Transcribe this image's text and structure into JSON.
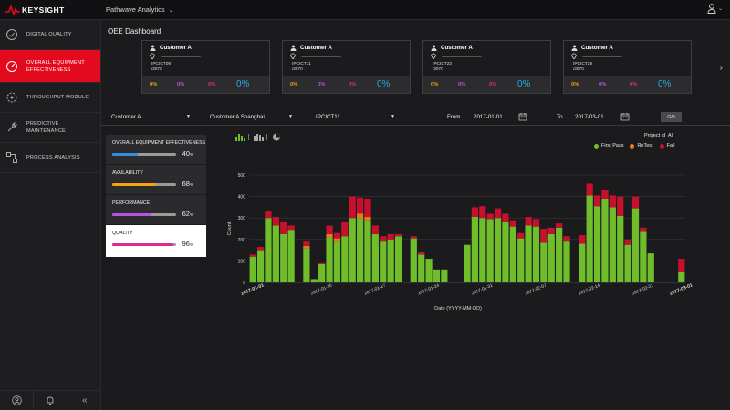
{
  "header": {
    "brand": "KEYSIGHT",
    "product": "Pathwave Analytics"
  },
  "sidebar": {
    "items": [
      {
        "label": "DIGITAL QUALITY",
        "icon": "quality-icon",
        "active": false
      },
      {
        "label": "OVERALL EQUIPMENT EFFECTIVENESS",
        "icon": "gauge-icon",
        "active": true
      },
      {
        "label": "THROUGHPUT MODULE",
        "icon": "throughput-icon",
        "active": false
      },
      {
        "label": "PREDICTIVE MAINTENANCE",
        "icon": "wrench-icon",
        "active": false
      },
      {
        "label": "PROCESS ANALYSIS",
        "icon": "process-icon",
        "active": false
      }
    ]
  },
  "page": {
    "title": "OEE Dashboard"
  },
  "cards": [
    {
      "customer": "Customer A",
      "tester": "IPCICT09",
      "model": "i3070",
      "p1": "0%",
      "p2": "0%",
      "p3": "0%",
      "p4": "0%"
    },
    {
      "customer": "Customer A",
      "tester": "IPCICT11",
      "model": "i3070",
      "p1": "0%",
      "p2": "0%",
      "p3": "0%",
      "p4": "0%"
    },
    {
      "customer": "Customer A",
      "tester": "IPCICT22",
      "model": "i3070",
      "p1": "0%",
      "p2": "0%",
      "p3": "0%",
      "p4": "0%"
    },
    {
      "customer": "Customer A",
      "tester": "IPCICT29",
      "model": "i3070",
      "p1": "0%",
      "p2": "0%",
      "p3": "0%",
      "p4": "0%"
    }
  ],
  "filters": {
    "customer": "Customer A",
    "site": "Customer A Shanghai",
    "tester": "IPCICT11",
    "from_label": "From",
    "from_date": "2017-01-01",
    "to_label": "To",
    "to_date": "2017-03-01",
    "go_label": "GO"
  },
  "kpis": [
    {
      "label": "OVERALL EQUIPMENT EFFECTIVENESS",
      "value": "40",
      "fill": 0.4,
      "color": "#2f8fe0",
      "selected": false
    },
    {
      "label": "AVAILABILITY",
      "value": "68",
      "fill": 0.68,
      "color": "#f5a016",
      "selected": false
    },
    {
      "label": "PERFORMANCE",
      "value": "62",
      "fill": 0.62,
      "color": "#b455e0",
      "selected": false
    },
    {
      "label": "QUALITY",
      "value": "96",
      "fill": 0.96,
      "color": "#e0288c",
      "selected": true
    }
  ],
  "kpi_unit": "%",
  "project": {
    "label": "Project Id",
    "value": "All"
  },
  "chart_data": {
    "type": "bar",
    "stacked": true,
    "xlabel": "Date (YYYY-MM-DD)",
    "ylabel": "Count",
    "ylim": [
      0,
      500
    ],
    "yticks": [
      "0",
      "100",
      "200",
      "300",
      "400",
      "500"
    ],
    "xticks": [
      "2017-01-01",
      "2017-01-10",
      "2017-01-17",
      "2017-01-24",
      "2017-01-31",
      "2017-02-07",
      "2017-02-14",
      "2017-02-21",
      "2017-03-01"
    ],
    "legend_position": "top-right",
    "series": [
      {
        "name": "First Pass",
        "color": "#6fbd2a",
        "values": [
          120,
          150,
          300,
          265,
          225,
          245,
          0,
          160,
          15,
          85,
          210,
          190,
          215,
          300,
          300,
          285,
          225,
          190,
          200,
          215,
          0,
          205,
          130,
          110,
          60,
          60,
          0,
          0,
          175,
          305,
          300,
          295,
          300,
          280,
          260,
          205,
          265,
          260,
          185,
          225,
          255,
          190,
          0,
          180,
          405,
          355,
          390,
          350,
          310,
          175,
          345,
          235,
          135,
          0,
          0,
          0,
          50
        ]
      },
      {
        "name": "ReTest",
        "color": "#e77b1c",
        "values": [
          0,
          0,
          0,
          0,
          0,
          0,
          0,
          10,
          0,
          0,
          15,
          15,
          0,
          0,
          20,
          20,
          0,
          0,
          0,
          0,
          0,
          0,
          0,
          0,
          0,
          0,
          0,
          0,
          0,
          0,
          0,
          0,
          0,
          0,
          0,
          0,
          0,
          0,
          0,
          0,
          0,
          0,
          0,
          0,
          0,
          0,
          0,
          0,
          0,
          0,
          0,
          0,
          0,
          0,
          0,
          0,
          0
        ]
      },
      {
        "name": "Fail",
        "color": "#c8102e",
        "values": [
          10,
          15,
          30,
          40,
          55,
          20,
          0,
          20,
          0,
          5,
          40,
          25,
          65,
          100,
          75,
          85,
          40,
          25,
          25,
          10,
          0,
          10,
          10,
          0,
          0,
          0,
          0,
          0,
          0,
          45,
          55,
          25,
          45,
          40,
          25,
          25,
          40,
          35,
          65,
          30,
          20,
          25,
          0,
          40,
          55,
          50,
          40,
          55,
          90,
          25,
          55,
          20,
          0,
          0,
          0,
          0,
          60
        ]
      }
    ]
  }
}
